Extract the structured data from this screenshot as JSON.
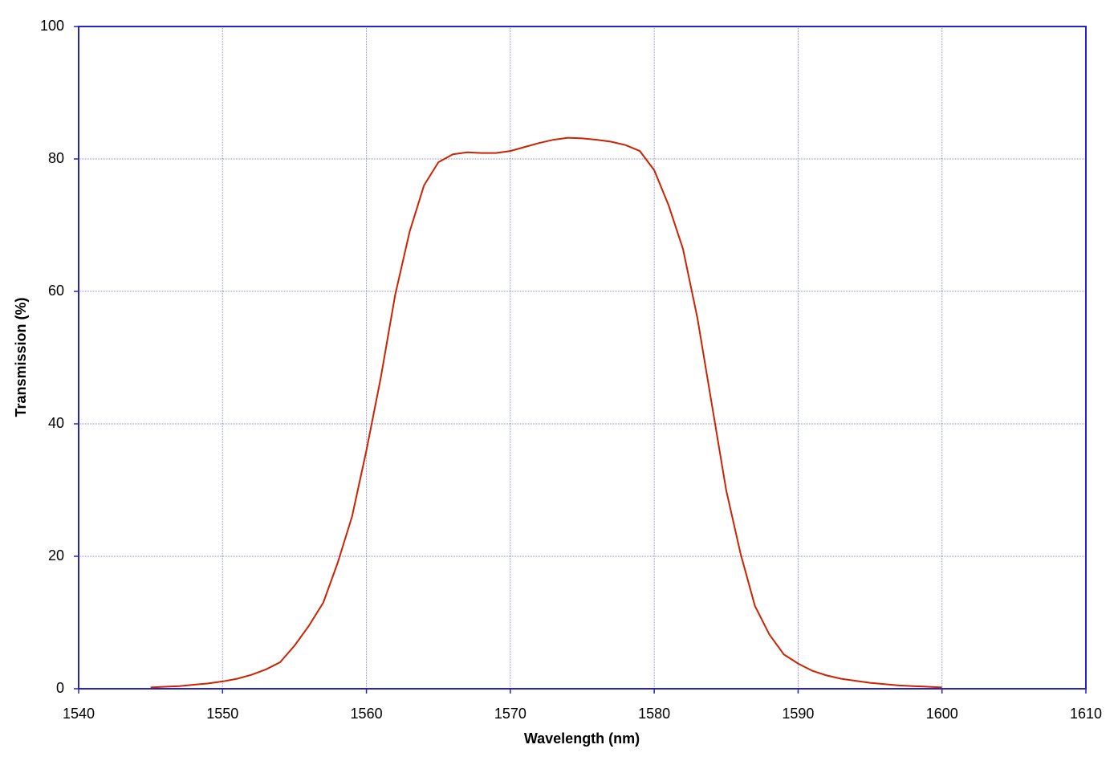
{
  "chart_data": {
    "type": "line",
    "x_label": "Wavelength (nm)",
    "y_label": "Transmission (%)",
    "x": [
      1545,
      1546,
      1547,
      1548,
      1549,
      1550,
      1551,
      1552,
      1553,
      1554,
      1555,
      1556,
      1557,
      1558,
      1559,
      1560,
      1561,
      1562,
      1563,
      1564,
      1565,
      1566,
      1567,
      1568,
      1569,
      1570,
      1571,
      1572,
      1573,
      1574,
      1575,
      1576,
      1577,
      1578,
      1579,
      1580,
      1581,
      1582,
      1583,
      1584,
      1585,
      1586,
      1587,
      1588,
      1589,
      1590,
      1591,
      1592,
      1593,
      1594,
      1595,
      1596,
      1597,
      1598,
      1599,
      1600
    ],
    "values": [
      0.2,
      0.3,
      0.4,
      0.6,
      0.8,
      1.1,
      1.5,
      2.1,
      2.9,
      4.0,
      6.5,
      9.5,
      13,
      19,
      26,
      36,
      47,
      59.5,
      69,
      76,
      79.5,
      80.7,
      81,
      80.9,
      80.9,
      81.2,
      81.8,
      82.4,
      82.9,
      83.2,
      83.1,
      82.9,
      82.6,
      82.1,
      81.2,
      78.3,
      73,
      66.4,
      56,
      43,
      30,
      20.4,
      12.5,
      8.2,
      5.2,
      3.8,
      2.7,
      2.0,
      1.5,
      1.2,
      0.9,
      0.7,
      0.5,
      0.4,
      0.3,
      0.2
    ],
    "color": "#cc2200",
    "xlim": [
      1540,
      1610
    ],
    "xticks": [
      1540,
      1550,
      1560,
      1570,
      1580,
      1590,
      1600,
      1610
    ],
    "ylim": [
      0,
      100
    ],
    "yticks": [
      0,
      20,
      40,
      60,
      80,
      100
    ],
    "grid": true,
    "frame_color": "#2323c8",
    "grid_color": "#8a8ae0"
  }
}
